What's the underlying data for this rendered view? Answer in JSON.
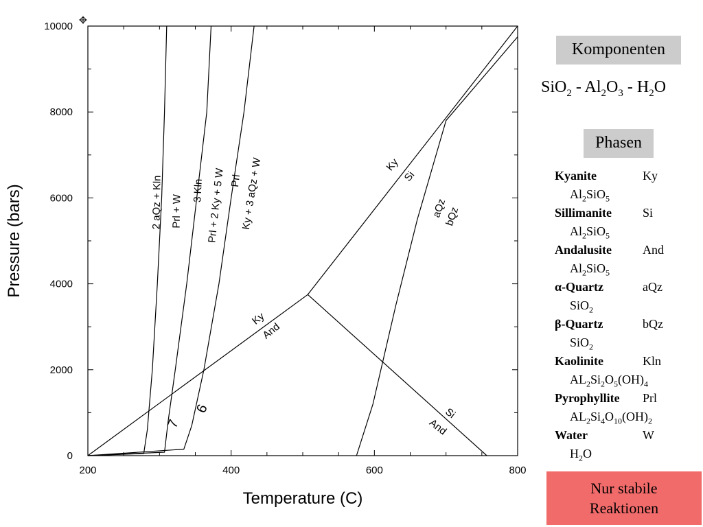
{
  "chart_data": {
    "type": "line",
    "xlabel": "Temperature (C)",
    "ylabel": "Pressure (bars)",
    "xlim": [
      200,
      800
    ],
    "ylim": [
      0,
      10000
    ],
    "x_ticks": [
      200,
      400,
      600,
      800
    ],
    "y_ticks": [
      0,
      2000,
      4000,
      6000,
      8000,
      10000
    ],
    "curves": [
      {
        "id": "ky-and",
        "points": [
          [
            200,
            0
          ],
          [
            507,
            3750
          ]
        ],
        "labels": [
          "Ky",
          "And"
        ]
      },
      {
        "id": "ky-si",
        "points": [
          [
            507,
            3750
          ],
          [
            800,
            10000
          ]
        ],
        "labels": [
          "Ky",
          "Si"
        ]
      },
      {
        "id": "si-and",
        "points": [
          [
            507,
            3750
          ],
          [
            757,
            0
          ]
        ],
        "labels": [
          "Si",
          "And"
        ]
      },
      {
        "id": "aqz-bqz",
        "points": [
          [
            575,
            0
          ],
          [
            598,
            1200
          ],
          [
            630,
            3500
          ],
          [
            660,
            5500
          ],
          [
            700,
            7800
          ],
          [
            800,
            9750
          ]
        ],
        "labels": [
          "aQz",
          "bQz"
        ]
      },
      {
        "id": "kln-prl-w",
        "points": [
          [
            200,
            0
          ],
          [
            278,
            50
          ],
          [
            283,
            600
          ],
          [
            290,
            2000
          ],
          [
            297,
            4000
          ],
          [
            303,
            6000
          ],
          [
            307,
            8000
          ],
          [
            310,
            10000
          ]
        ],
        "labels": [
          "2 aQz + Kln",
          "Prl + W"
        ]
      },
      {
        "id": "kln-prl-ky-w",
        "points": [
          [
            200,
            0
          ],
          [
            307,
            80
          ],
          [
            312,
            800
          ],
          [
            322,
            2000
          ],
          [
            338,
            4000
          ],
          [
            352,
            6000
          ],
          [
            366,
            8000
          ],
          [
            372,
            10000
          ]
        ],
        "labels": [
          "3 Kln",
          "Prl + 2 Ky + 5 W"
        ],
        "number": "7"
      },
      {
        "id": "prl-ky-aqz-w",
        "points": [
          [
            200,
            0
          ],
          [
            334,
            150
          ],
          [
            345,
            700
          ],
          [
            362,
            2000
          ],
          [
            383,
            4000
          ],
          [
            400,
            6000
          ],
          [
            418,
            8000
          ],
          [
            432,
            10000
          ]
        ],
        "labels": [
          "Prl",
          "Ky + 3 aQz + W"
        ],
        "number": "6"
      }
    ]
  },
  "sidebar": {
    "components_header": "Komponenten",
    "formula": [
      {
        "t": "SiO"
      },
      {
        "t": "2",
        "sub": true
      },
      {
        "t": " - Al"
      },
      {
        "t": "2",
        "sub": true
      },
      {
        "t": "O"
      },
      {
        "t": "3",
        "sub": true
      },
      {
        "t": " - H"
      },
      {
        "t": "2",
        "sub": true
      },
      {
        "t": "O"
      }
    ],
    "phases_header": "Phasen",
    "phases": [
      {
        "name": "Kyanite",
        "abbr": "Ky",
        "formula": [
          {
            "t": "Al"
          },
          {
            "t": "2",
            "sub": true
          },
          {
            "t": "SiO"
          },
          {
            "t": "5",
            "sub": true
          }
        ]
      },
      {
        "name": "Sillimanite",
        "abbr": "Si",
        "formula": [
          {
            "t": "Al"
          },
          {
            "t": "2",
            "sub": true
          },
          {
            "t": "SiO"
          },
          {
            "t": "5",
            "sub": true
          }
        ]
      },
      {
        "name": "Andalusite",
        "abbr": "And",
        "formula": [
          {
            "t": "Al"
          },
          {
            "t": "2",
            "sub": true
          },
          {
            "t": "SiO"
          },
          {
            "t": "5",
            "sub": true
          }
        ]
      },
      {
        "name": "α-Quartz",
        "abbr": "aQz",
        "formula": [
          {
            "t": "SiO"
          },
          {
            "t": "2",
            "sub": true
          }
        ]
      },
      {
        "name": "β-Quartz",
        "abbr": "bQz",
        "formula": [
          {
            "t": "SiO"
          },
          {
            "t": "2",
            "sub": true
          }
        ]
      },
      {
        "name": "Kaolinite",
        "abbr": "Kln",
        "formula": [
          {
            "t": "AL"
          },
          {
            "t": "2",
            "sub": true
          },
          {
            "t": "Si"
          },
          {
            "t": "2",
            "sub": true
          },
          {
            "t": "O"
          },
          {
            "t": "5",
            "sub": true
          },
          {
            "t": "(OH)"
          },
          {
            "t": "4",
            "sub": true
          }
        ]
      },
      {
        "name": "Pyrophyllite",
        "abbr": "Prl",
        "formula": [
          {
            "t": "AL"
          },
          {
            "t": "2",
            "sub": true
          },
          {
            "t": "Si"
          },
          {
            "t": "4",
            "sub": true
          },
          {
            "t": "O"
          },
          {
            "t": "10",
            "sub": true
          },
          {
            "t": "(OH)"
          },
          {
            "t": "2",
            "sub": true
          }
        ]
      },
      {
        "name": "Water",
        "abbr": "W",
        "formula": [
          {
            "t": "H"
          },
          {
            "t": "2",
            "sub": true
          },
          {
            "t": "O"
          }
        ]
      }
    ],
    "stable_box": [
      "Nur stabile",
      "Reaktionen"
    ]
  }
}
